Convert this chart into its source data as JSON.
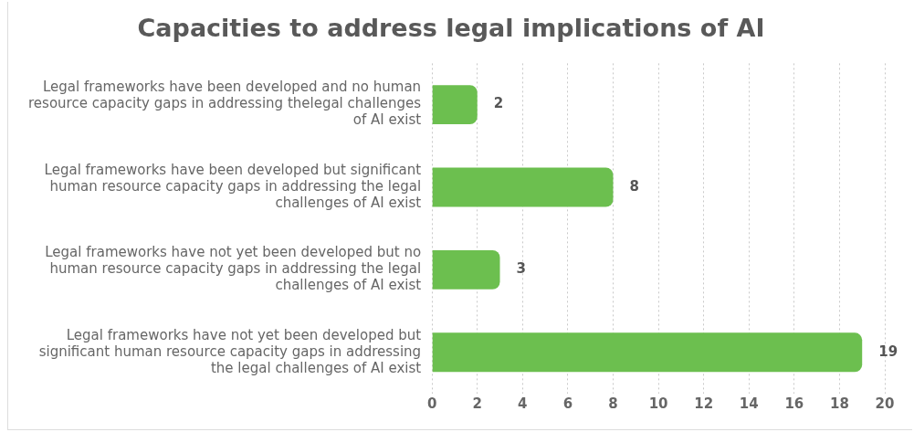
{
  "chart_data": {
    "type": "bar",
    "orientation": "horizontal",
    "title": "Capacities to address legal implications of AI",
    "categories": [
      "Legal frameworks have been developed and no human resource capacity gaps in addressing thelegal challenges of AI exist",
      "Legal frameworks have been developed but significant human resource capacity gaps in addressing the legal challenges of AI exist",
      "Legal frameworks have not yet been developed but no human resource capacity gaps in addressing the legal challenges of AI exist",
      "Legal frameworks have not yet been developed but significant human resource capacity gaps in addressing the legal challenges of AI exist"
    ],
    "values": [
      2,
      8,
      3,
      19
    ],
    "color": "#6cbf4f",
    "data_labels": true,
    "xlim": [
      0,
      20
    ],
    "xticks": [
      0,
      2,
      4,
      6,
      8,
      10,
      12,
      14,
      16,
      18,
      20
    ],
    "grid": "x"
  }
}
